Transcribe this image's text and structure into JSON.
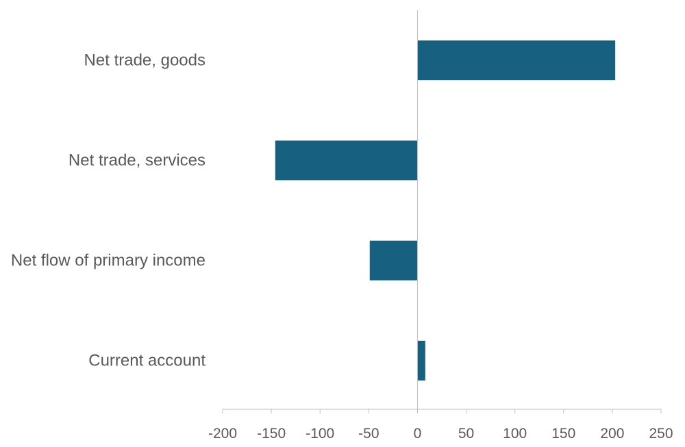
{
  "chart_data": {
    "type": "bar",
    "orientation": "horizontal",
    "categories": [
      "Net trade, goods",
      "Net trade, services",
      "Net flow of primary income",
      "Current account"
    ],
    "values": [
      203,
      -146,
      -49,
      8
    ],
    "xlim": [
      -200,
      250
    ],
    "xticks": [
      -200,
      -150,
      -100,
      -50,
      0,
      50,
      100,
      150,
      200,
      250
    ],
    "xtick_labels": [
      "-200",
      "-150",
      "-100",
      "-50",
      "0",
      "50",
      "100",
      "150",
      "200",
      "250"
    ],
    "grid": false,
    "legend": "none",
    "colors": {
      "bar": "#17607f",
      "axis": "#bfbfbf",
      "text": "#595959"
    }
  }
}
